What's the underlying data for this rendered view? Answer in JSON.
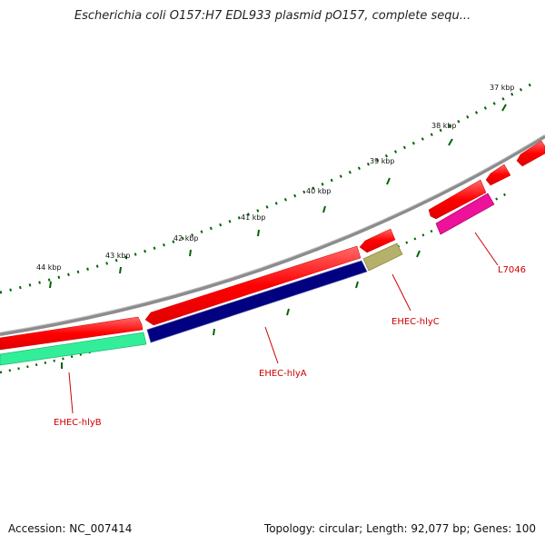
{
  "title": "Escherichia coli O157:H7 EDL933 plasmid pO157, complete sequ...",
  "ruler": {
    "tick_labels": [
      "37 kbp",
      "38 kbp",
      "39 kbp",
      "40 kbp",
      "41 kbp",
      "42 kbp",
      "43 kbp",
      "44 kbp"
    ]
  },
  "genes": [
    {
      "name": "EHEC-hlyB",
      "color": "#33ee99"
    },
    {
      "name": "EHEC-hlyA",
      "color": "#000080"
    },
    {
      "name": "EHEC-hlyC",
      "color": "#b5b06a"
    },
    {
      "name": "L7046",
      "color": "#ee1199"
    }
  ],
  "colors": {
    "backbone": "#8c8c8c",
    "cds_forward": "#ff0000",
    "tick": "#006400",
    "label": "#cc0000"
  },
  "footer": {
    "accession": "Accession: NC_007414",
    "stats": "Topology: circular; Length: 92,077 bp; Genes: 100"
  }
}
